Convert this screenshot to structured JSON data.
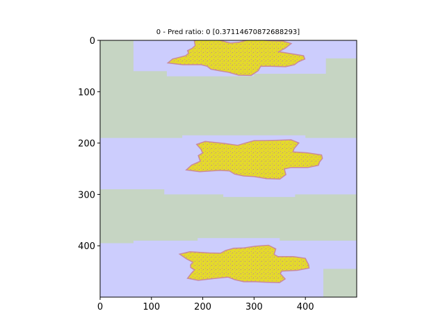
{
  "chart_data": {
    "type": "heatmap",
    "title": "0 - Pred ratio: 0 [0.37114670872688293]",
    "xlabel": "",
    "ylabel": "",
    "xlim": [
      0,
      500
    ],
    "ylim": [
      500,
      0
    ],
    "x_ticks": [
      0,
      100,
      200,
      300,
      400
    ],
    "y_ticks": [
      0,
      100,
      200,
      300,
      400
    ],
    "grid": false,
    "colors": {
      "background_tissue": "#c6d5c3",
      "predicted_region": "#cccdfd",
      "tissue_yellow": "#e4d92c",
      "tissue_pink": "#c98a9c",
      "frame": "#000000"
    },
    "blue_band_polygons": [
      [
        [
          0,
          0
        ],
        [
          500,
          0
        ],
        [
          500,
          35
        ],
        [
          440,
          35
        ],
        [
          440,
          65
        ],
        [
          300,
          65
        ],
        [
          300,
          70
        ],
        [
          130,
          70
        ],
        [
          130,
          60
        ],
        [
          65,
          60
        ],
        [
          65,
          55
        ],
        [
          65,
          0
        ]
      ],
      [
        [
          0,
          190
        ],
        [
          160,
          190
        ],
        [
          160,
          185
        ],
        [
          400,
          185
        ],
        [
          400,
          190
        ],
        [
          500,
          190
        ],
        [
          500,
          300
        ],
        [
          380,
          300
        ],
        [
          380,
          305
        ],
        [
          240,
          305
        ],
        [
          240,
          300
        ],
        [
          125,
          300
        ],
        [
          125,
          290
        ],
        [
          0,
          290
        ]
      ],
      [
        [
          0,
          395
        ],
        [
          65,
          395
        ],
        [
          65,
          390
        ],
        [
          190,
          390
        ],
        [
          190,
          385
        ],
        [
          350,
          385
        ],
        [
          350,
          390
        ],
        [
          500,
          390
        ],
        [
          500,
          445
        ],
        [
          435,
          445
        ],
        [
          435,
          500
        ],
        [
          0,
          500
        ]
      ]
    ],
    "tissue_regions": [
      {
        "center": [
          270,
          30
        ],
        "radius": [
          115,
          32
        ]
      },
      {
        "center": [
          300,
          230
        ],
        "radius": [
          120,
          35
        ]
      },
      {
        "center": [
          280,
          437
        ],
        "radius": [
          115,
          33
        ]
      }
    ]
  }
}
